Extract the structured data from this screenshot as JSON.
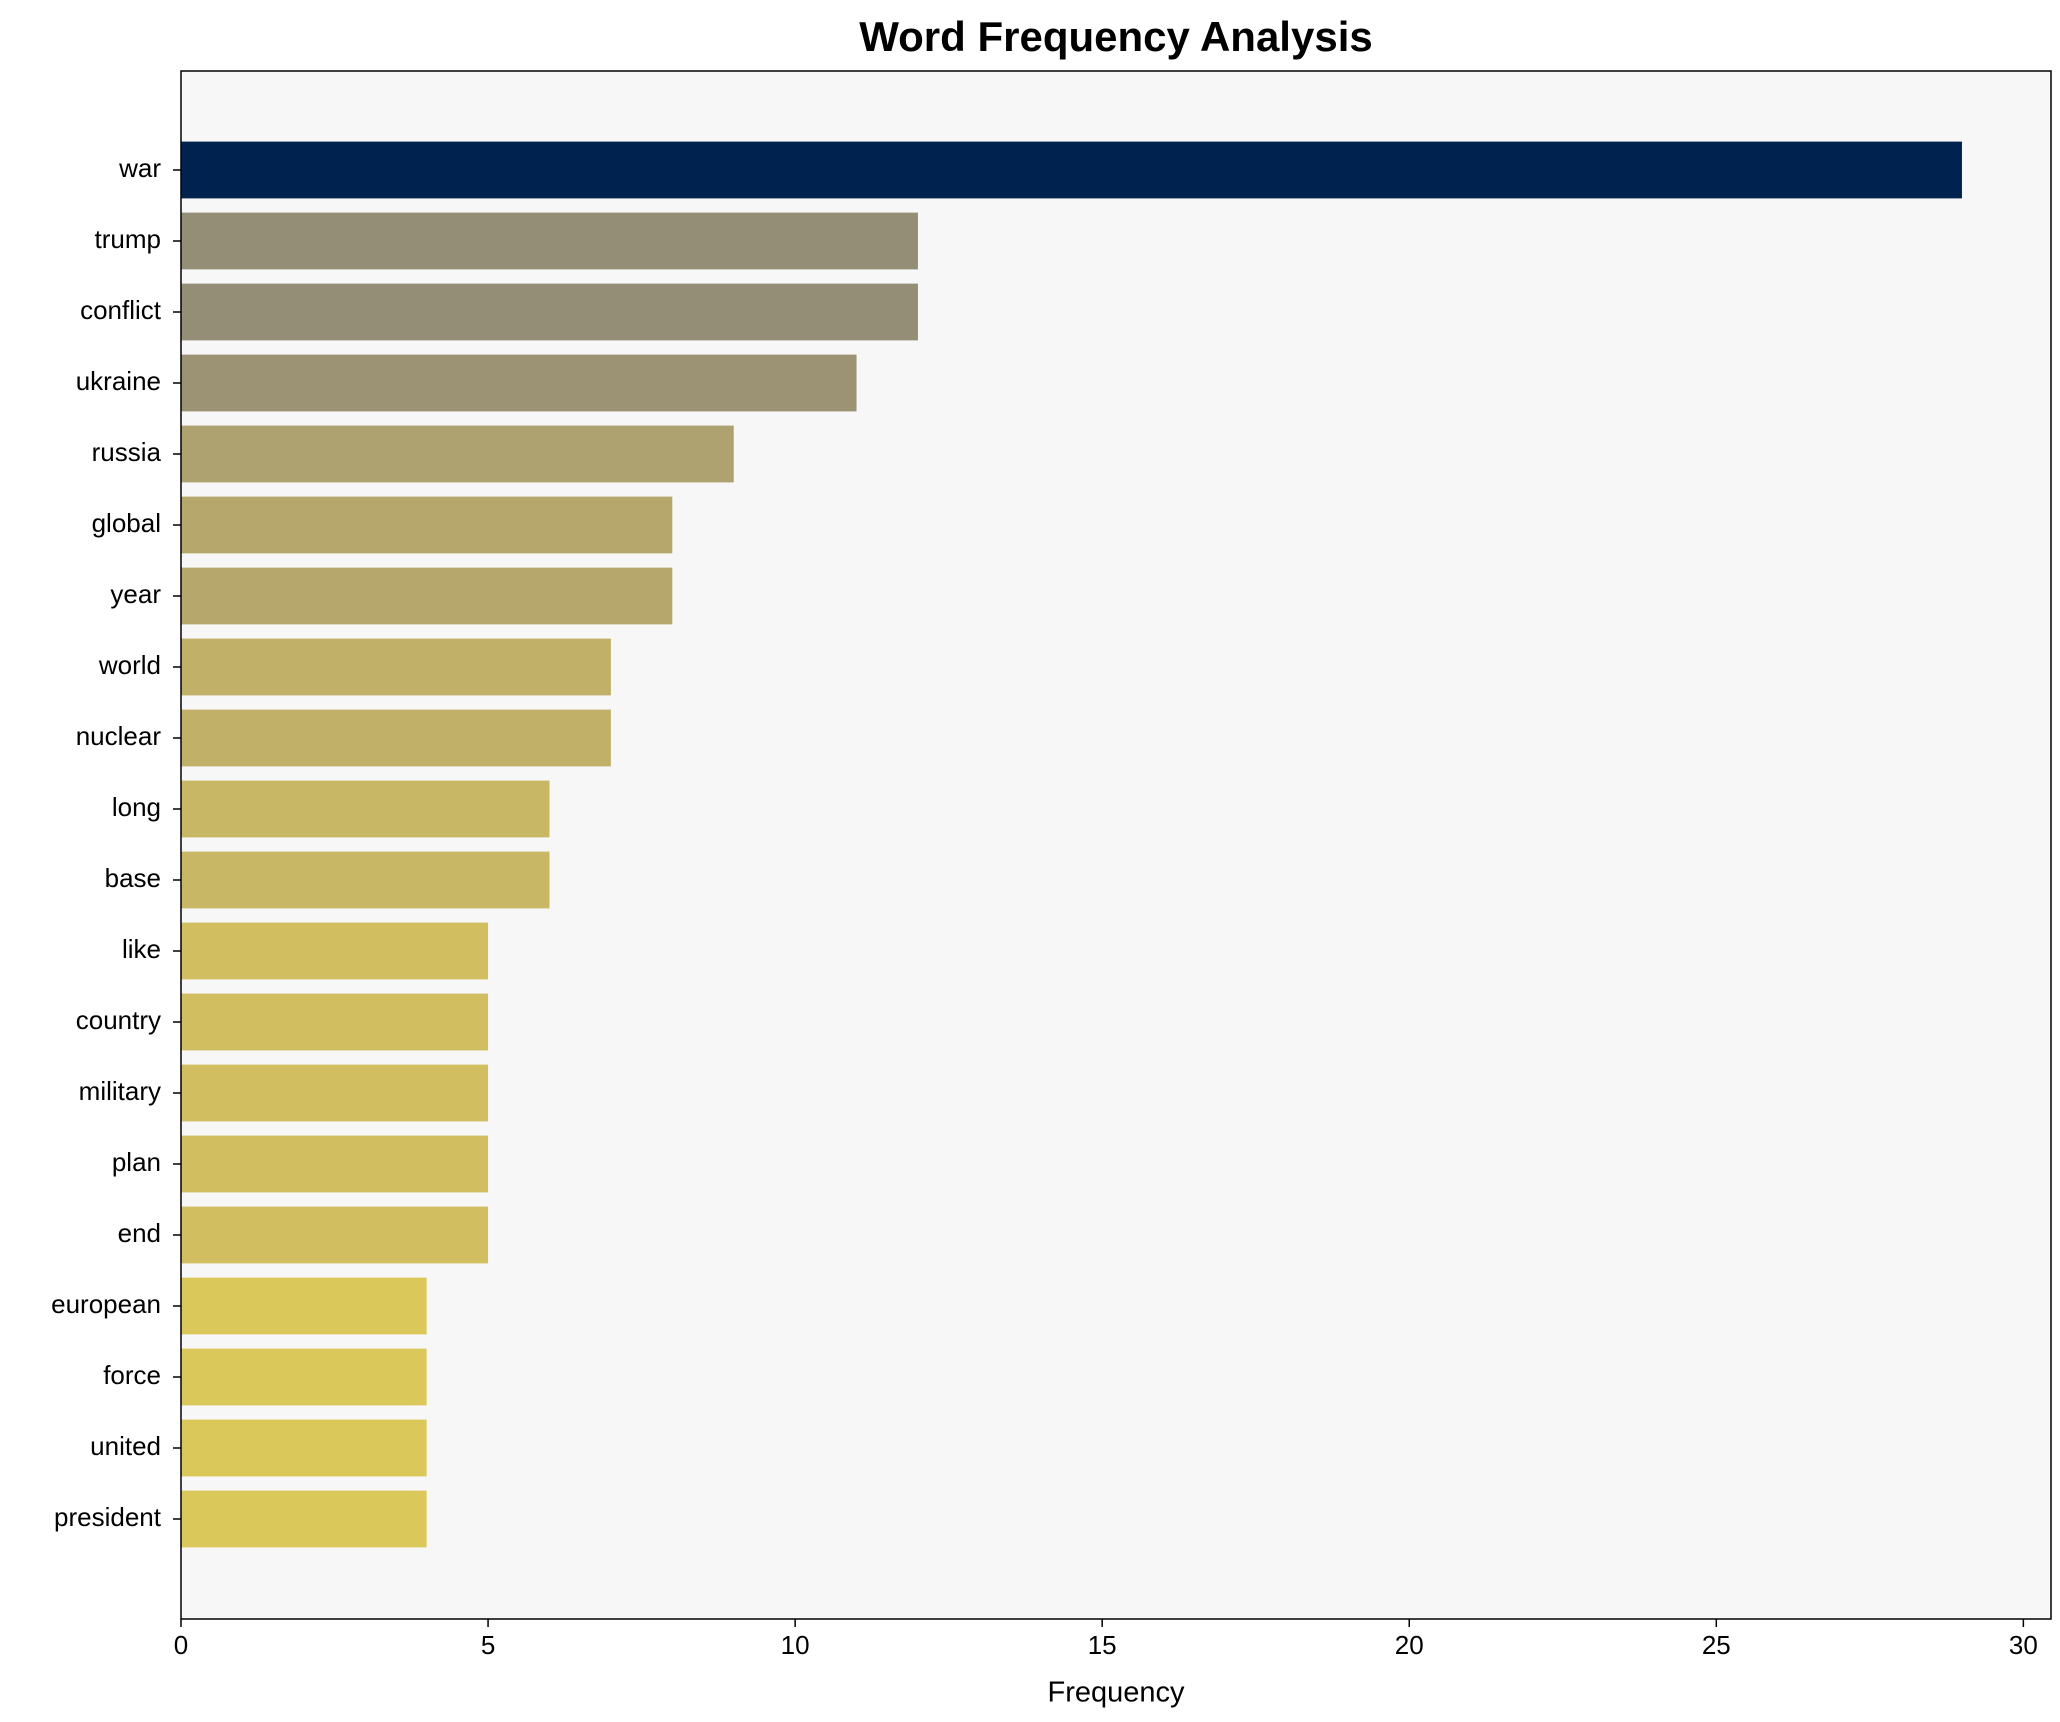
{
  "chart_data": {
    "type": "barh",
    "title": "Word Frequency Analysis",
    "x_label": "Frequency",
    "categories": [
      "war",
      "trump",
      "conflict",
      "ukraine",
      "russia",
      "global",
      "year",
      "world",
      "nuclear",
      "long",
      "base",
      "like",
      "country",
      "military",
      "plan",
      "end",
      "european",
      "force",
      "united",
      "president"
    ],
    "values": [
      29,
      12,
      12,
      11,
      9,
      8,
      8,
      7,
      7,
      6,
      6,
      5,
      5,
      5,
      5,
      5,
      4,
      4,
      4,
      4
    ],
    "colors": [
      "#00224e",
      "#948e77",
      "#948e77",
      "#9b9374",
      "#ada270",
      "#b6a86d",
      "#b6a86d",
      "#c0b068",
      "#c0b068",
      "#c8b765",
      "#c8b765",
      "#d1be61",
      "#d1be61",
      "#d1be61",
      "#d1be61",
      "#d1be61",
      "#dac85b",
      "#dac85b",
      "#dac85b",
      "#dac85b"
    ],
    "xlim": [
      0,
      30.45
    ],
    "xticks": [
      0,
      5,
      10,
      15,
      20,
      25,
      30
    ]
  }
}
